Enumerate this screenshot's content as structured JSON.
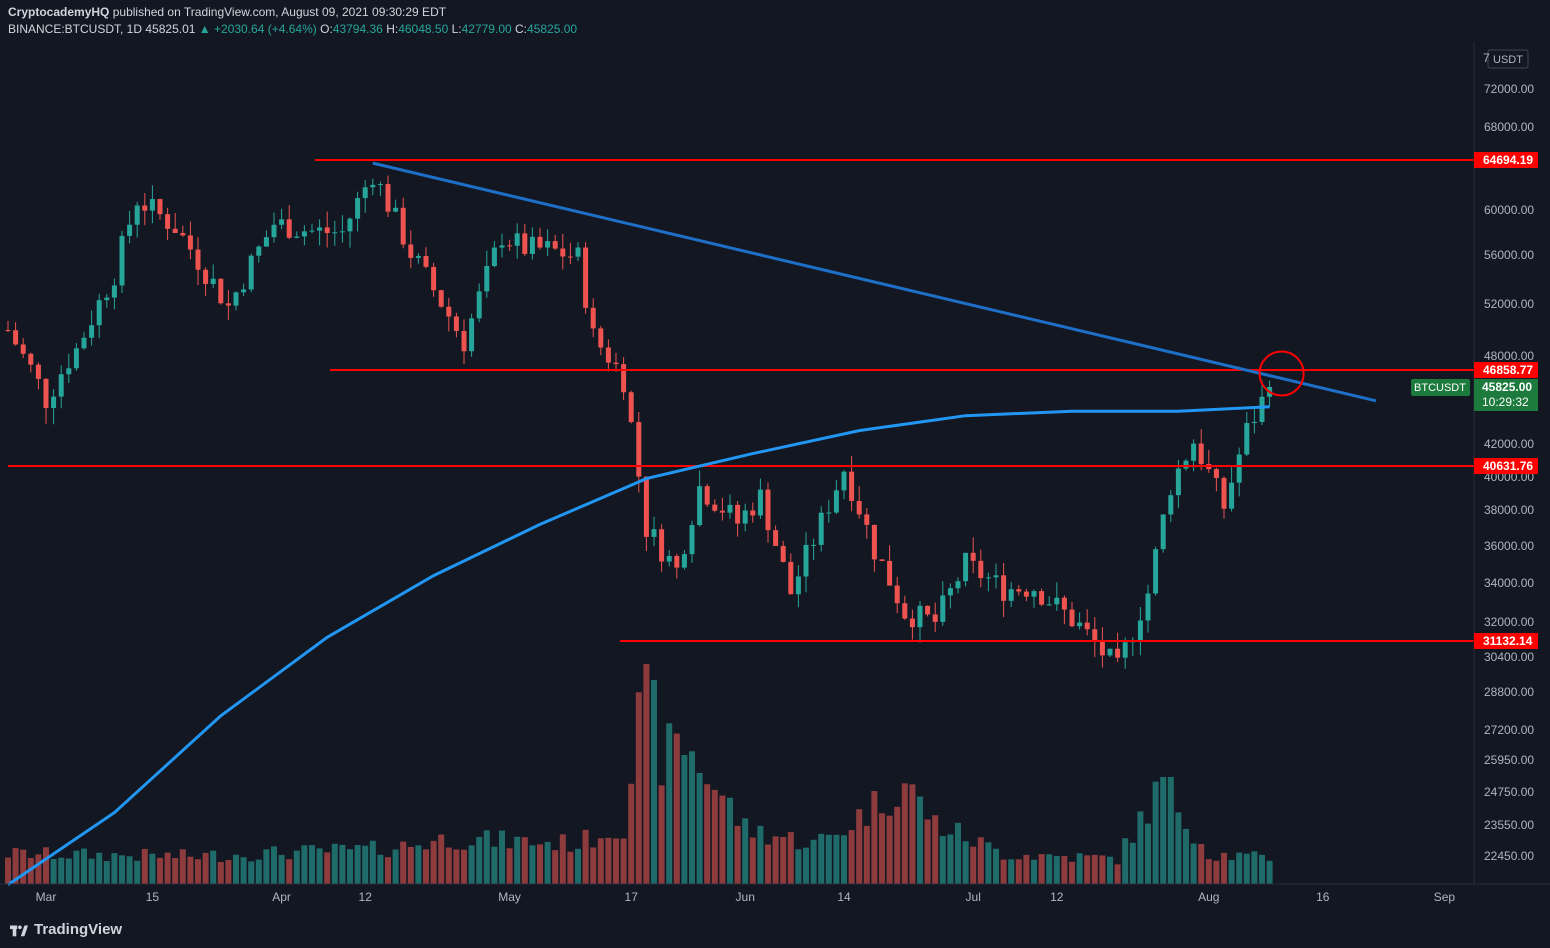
{
  "header": {
    "author": "CryptocademyHQ",
    "published_text": "published on TradingView.com, August 09, 2021 09:30:29 EDT",
    "symbol": "BINANCE:BTCUSDT, 1D",
    "last": "45825.01",
    "change": "+2030.64 (+4.64%)",
    "o_label": "O:",
    "o": "43794.36",
    "h_label": "H:",
    "h": "46048.50",
    "l_label": "L:",
    "l": "42779.00",
    "c_label": "C:",
    "c": "45825.00"
  },
  "footer": {
    "brand": "TradingView"
  },
  "colors": {
    "background": "#131722",
    "up": "#26a69a",
    "down": "#ef5350",
    "up_volume": "#1e6b6a",
    "down_volume": "#8e3b3e",
    "level_line": "#ff0000",
    "trend_line": "#1e6fc8",
    "ma_line": "#2196f3",
    "axis_text": "#b2b5be"
  },
  "chart_data": {
    "type": "candlestick",
    "currency": "USDT",
    "price_ticks": [
      "7",
      "72000.00",
      "68000.00",
      "60000.00",
      "56000.00",
      "52000.00",
      "48000.00",
      "42000.00",
      "40000.00",
      "38000.00",
      "36000.00",
      "34000.00",
      "32000.00",
      "30400.00",
      "28800.00",
      "27200.00",
      "25950.00",
      "24750.00",
      "23550.00",
      "22450.00"
    ],
    "date_ticks": [
      "Mar",
      "15",
      "Apr",
      "12",
      "May",
      "17",
      "Jun",
      "14",
      "Jul",
      "12",
      "Aug",
      "16",
      "Sep"
    ],
    "levels": [
      {
        "label": "64694.19",
        "value": 64694.19
      },
      {
        "label": "46858.77",
        "value": 46858.77
      },
      {
        "label": "40631.76",
        "value": 40631.76
      },
      {
        "label": "31132.14",
        "value": 31132.14
      }
    ],
    "last_price": {
      "symbol": "BTCUSDT",
      "label": "45825.00",
      "countdown": "10:29:32"
    },
    "trendline": {
      "from": [
        "2021-04-13",
        64400
      ],
      "to": [
        "2021-08-23",
        44900
      ]
    },
    "moving_average": [
      [
        "2021-02-24",
        21500
      ],
      [
        "2021-03-10",
        24000
      ],
      [
        "2021-03-24",
        27800
      ],
      [
        "2021-04-07",
        31300
      ],
      [
        "2021-04-21",
        34400
      ],
      [
        "2021-05-05",
        37200
      ],
      [
        "2021-05-19",
        39900
      ],
      [
        "2021-06-02",
        41400
      ],
      [
        "2021-06-16",
        42900
      ],
      [
        "2021-06-30",
        43900
      ],
      [
        "2021-07-14",
        44200
      ],
      [
        "2021-07-28",
        44200
      ],
      [
        "2021-08-09",
        44500
      ]
    ],
    "circle_annotation": {
      "date": "2021-08-09",
      "value": 46900
    },
    "anchors": [
      [
        "2021-02-24",
        50000
      ],
      [
        "2021-03-01",
        45000
      ],
      [
        "2021-03-05",
        48500
      ],
      [
        "2021-03-10",
        54500
      ],
      [
        "2021-03-13",
        61000
      ],
      [
        "2021-03-18",
        58500
      ],
      [
        "2021-03-25",
        51800
      ],
      [
        "2021-03-31",
        58800
      ],
      [
        "2021-04-05",
        58100
      ],
      [
        "2021-04-09",
        58000
      ],
      [
        "2021-04-13",
        63500
      ],
      [
        "2021-04-18",
        56200
      ],
      [
        "2021-04-25",
        49100
      ],
      [
        "2021-04-30",
        57700
      ],
      [
        "2021-05-03",
        56600
      ],
      [
        "2021-05-06",
        56500
      ],
      [
        "2021-05-10",
        55800
      ],
      [
        "2021-05-12",
        49500
      ],
      [
        "2021-05-16",
        46400
      ],
      [
        "2021-05-19",
        37000
      ],
      [
        "2021-05-23",
        34700
      ],
      [
        "2021-05-26",
        39400
      ],
      [
        "2021-05-31",
        37300
      ],
      [
        "2021-06-03",
        38800
      ],
      [
        "2021-06-07",
        33500
      ],
      [
        "2021-06-11",
        37300
      ],
      [
        "2021-06-14",
        40500
      ],
      [
        "2021-06-18",
        35800
      ],
      [
        "2021-06-22",
        32500
      ],
      [
        "2021-06-26",
        32000
      ],
      [
        "2021-06-30",
        35000
      ],
      [
        "2021-07-05",
        33700
      ],
      [
        "2021-07-09",
        33800
      ],
      [
        "2021-07-15",
        31800
      ],
      [
        "2021-07-20",
        29800
      ],
      [
        "2021-07-24",
        33500
      ],
      [
        "2021-07-27",
        39500
      ],
      [
        "2021-07-30",
        42200
      ],
      [
        "2021-08-03",
        38200
      ],
      [
        "2021-08-06",
        42900
      ],
      [
        "2021-08-09",
        45825
      ]
    ],
    "volume": [
      [
        "2021-02-24",
        60000
      ],
      [
        "2021-03-20",
        55000
      ],
      [
        "2021-04-15",
        70000
      ],
      [
        "2021-04-23",
        90000
      ],
      [
        "2021-05-10",
        80000
      ],
      [
        "2021-05-16",
        120000
      ],
      [
        "2021-05-19",
        420000
      ],
      [
        "2021-05-21",
        250000
      ],
      [
        "2021-05-24",
        280000
      ],
      [
        "2021-06-01",
        110000
      ],
      [
        "2021-06-10",
        80000
      ],
      [
        "2021-06-13",
        100000
      ],
      [
        "2021-06-22",
        200000
      ],
      [
        "2021-06-26",
        120000
      ],
      [
        "2021-07-05",
        60000
      ],
      [
        "2021-07-20",
        50000
      ],
      [
        "2021-07-26",
        200000
      ],
      [
        "2021-08-01",
        60000
      ],
      [
        "2021-08-09",
        50000
      ]
    ]
  }
}
